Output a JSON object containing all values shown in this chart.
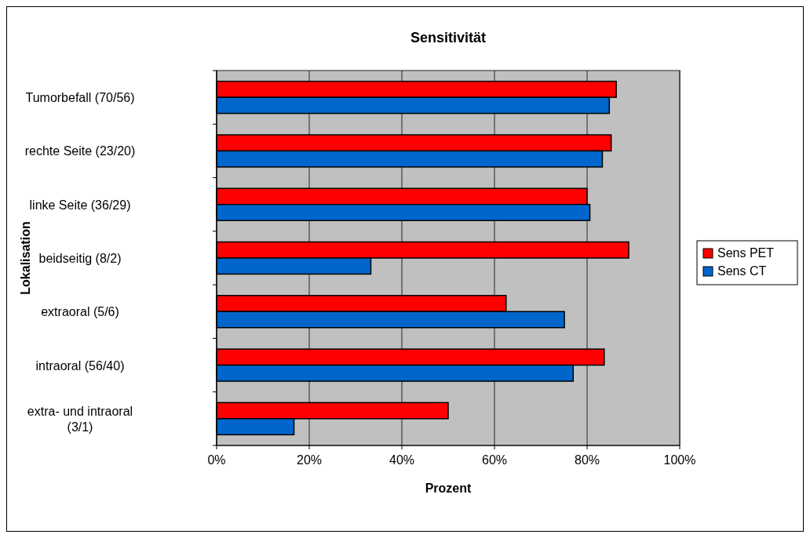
{
  "chart_data": {
    "type": "bar",
    "orientation": "horizontal",
    "title": "Sensitivität",
    "xlabel": "Prozent",
    "ylabel": "Lokalisation",
    "categories": [
      "Tumorbefall (70/56)",
      "rechte Seite (23/20)",
      "linke Seite (36/29)",
      "beidseitig (8/2)",
      "extraoral (5/6)",
      "intraoral (56/40)",
      "extra- und intraoral (3/1)"
    ],
    "series": [
      {
        "name": "Sens PET",
        "color": "#ff0000",
        "values": [
          86.3,
          85.2,
          80.0,
          89.0,
          62.5,
          83.7,
          50.0
        ]
      },
      {
        "name": "Sens CT",
        "color": "#0066cc",
        "values": [
          84.8,
          83.3,
          80.6,
          33.3,
          75.1,
          77.0,
          16.7
        ]
      }
    ],
    "xlim": [
      0,
      100
    ],
    "xticks": [
      {
        "value": 0,
        "label": "0%"
      },
      {
        "value": 20,
        "label": "20%"
      },
      {
        "value": 40,
        "label": "40%"
      },
      {
        "value": 60,
        "label": "60%"
      },
      {
        "value": 80,
        "label": "80%"
      },
      {
        "value": 100,
        "label": "100%"
      }
    ],
    "grid": "x",
    "legend": "right"
  }
}
